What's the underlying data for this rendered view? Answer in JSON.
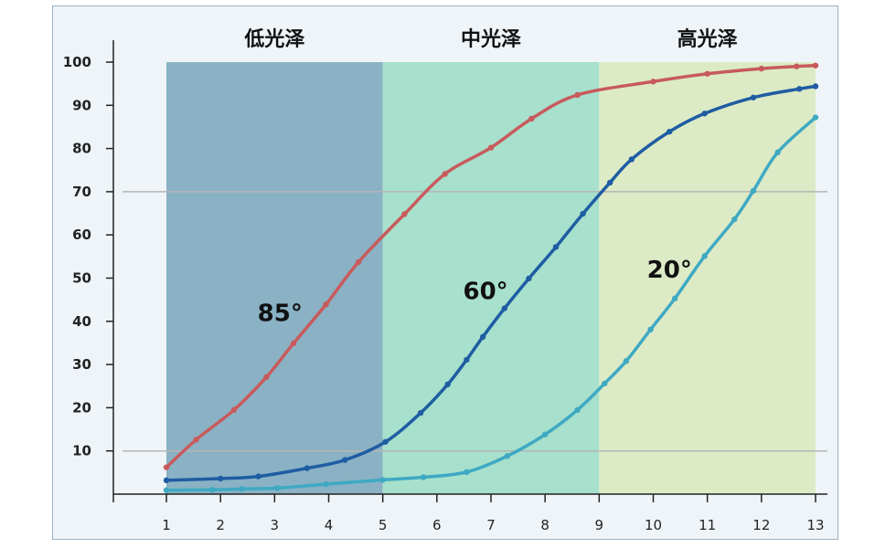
{
  "chart_data": {
    "type": "line",
    "xlim": [
      1,
      13
    ],
    "ylim": [
      0,
      100
    ],
    "x_ticks": [
      1,
      2,
      3,
      4,
      5,
      6,
      7,
      8,
      9,
      10,
      11,
      12,
      13
    ],
    "y_ticks": [
      10,
      20,
      30,
      40,
      50,
      60,
      70,
      80,
      90,
      100
    ],
    "grid_lines_y": [
      10,
      70
    ],
    "bands": [
      {
        "label": "低光泽",
        "x_range": [
          1,
          5
        ],
        "color": "#8ab2c4"
      },
      {
        "label": "中光泽",
        "x_range": [
          5,
          9
        ],
        "color": "#a7e0cc"
      },
      {
        "label": "高光泽",
        "x_range": [
          9,
          13
        ],
        "color": "#dcebc6"
      }
    ],
    "series": [
      {
        "name": "85°",
        "color": "#c85a5c",
        "label_at": [
          3.1,
          42
        ],
        "points": [
          [
            1,
            6.2
          ],
          [
            1.55,
            12.6
          ],
          [
            2.25,
            19.5
          ],
          [
            2.85,
            27.1
          ],
          [
            3.35,
            34.9
          ],
          [
            3.95,
            43.9
          ],
          [
            4.55,
            53.7
          ],
          [
            5.4,
            64.8
          ],
          [
            6.15,
            74.1
          ],
          [
            7,
            80.2
          ],
          [
            7.75,
            86.9
          ],
          [
            8.6,
            92.4
          ],
          [
            10,
            95.5
          ],
          [
            11,
            97.3
          ],
          [
            12,
            98.5
          ],
          [
            12.65,
            99
          ],
          [
            13,
            99.2
          ]
        ]
      },
      {
        "name": "60°",
        "color": "#1f5da3",
        "label_at": [
          6.9,
          47
        ],
        "points": [
          [
            1,
            3.2
          ],
          [
            2,
            3.6
          ],
          [
            2.7,
            4.1
          ],
          [
            3.6,
            6
          ],
          [
            4.3,
            7.9
          ],
          [
            5.05,
            12.1
          ],
          [
            5.7,
            18.8
          ],
          [
            6.2,
            25.4
          ],
          [
            6.55,
            31.1
          ],
          [
            6.85,
            36.4
          ],
          [
            7.25,
            43
          ],
          [
            7.7,
            49.9
          ],
          [
            8.2,
            57.2
          ],
          [
            8.7,
            64.9
          ],
          [
            9.2,
            72.1
          ],
          [
            9.6,
            77.5
          ],
          [
            10.3,
            83.9
          ],
          [
            10.95,
            88.1
          ],
          [
            11.85,
            91.8
          ],
          [
            12.7,
            93.8
          ],
          [
            13,
            94.4
          ]
        ]
      },
      {
        "name": "20°",
        "color": "#3fa9c3",
        "label_at": [
          10.3,
          52
        ],
        "points": [
          [
            1,
            0.9
          ],
          [
            1.85,
            1
          ],
          [
            2.4,
            1.2
          ],
          [
            3.05,
            1.4
          ],
          [
            3.95,
            2.3
          ],
          [
            5,
            3.3
          ],
          [
            5.75,
            3.9
          ],
          [
            6.55,
            5.1
          ],
          [
            7.3,
            8.8
          ],
          [
            8,
            13.8
          ],
          [
            8.6,
            19.5
          ],
          [
            9.1,
            25.6
          ],
          [
            9.5,
            30.8
          ],
          [
            9.95,
            38.1
          ],
          [
            10.4,
            45.3
          ],
          [
            10.95,
            55.1
          ],
          [
            11.5,
            63.6
          ],
          [
            11.85,
            70.2
          ],
          [
            12.3,
            79.1
          ],
          [
            13,
            87.2
          ]
        ]
      }
    ]
  }
}
